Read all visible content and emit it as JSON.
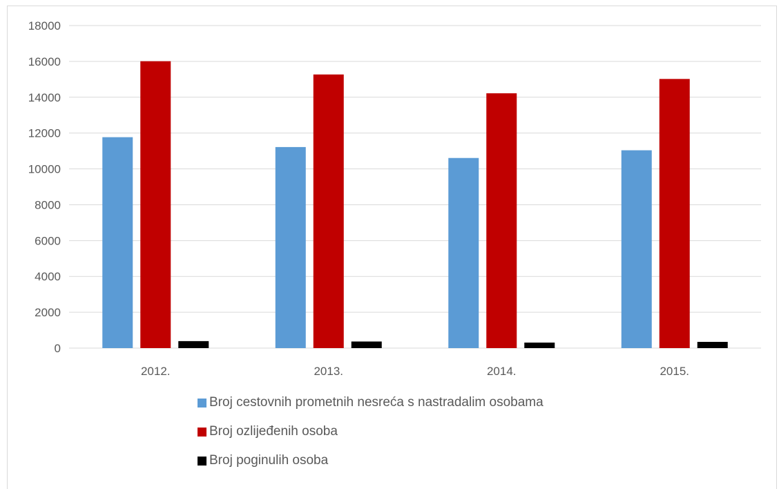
{
  "chart_data": {
    "type": "bar",
    "categories": [
      "2012.",
      "2013.",
      "2014.",
      "2015."
    ],
    "series": [
      {
        "name": "Broj cestovnih prometnih nesreća s nastradalim osobama",
        "color": "#5b9bd5",
        "values": [
          11770,
          11220,
          10610,
          11040
        ]
      },
      {
        "name": "Broj ozlijeđenih osoba",
        "color": "#c00000",
        "values": [
          16010,
          15270,
          14220,
          15020
        ]
      },
      {
        "name": "Broj poginulih osoba",
        "color": "#000000",
        "values": [
          390,
          368,
          308,
          348
        ]
      }
    ],
    "ylim": [
      0,
      18000
    ],
    "yticks": [
      0,
      2000,
      4000,
      6000,
      8000,
      10000,
      12000,
      14000,
      16000,
      18000
    ],
    "grid": true,
    "legend_position": "bottom",
    "title": "",
    "xlabel": "",
    "ylabel": ""
  }
}
